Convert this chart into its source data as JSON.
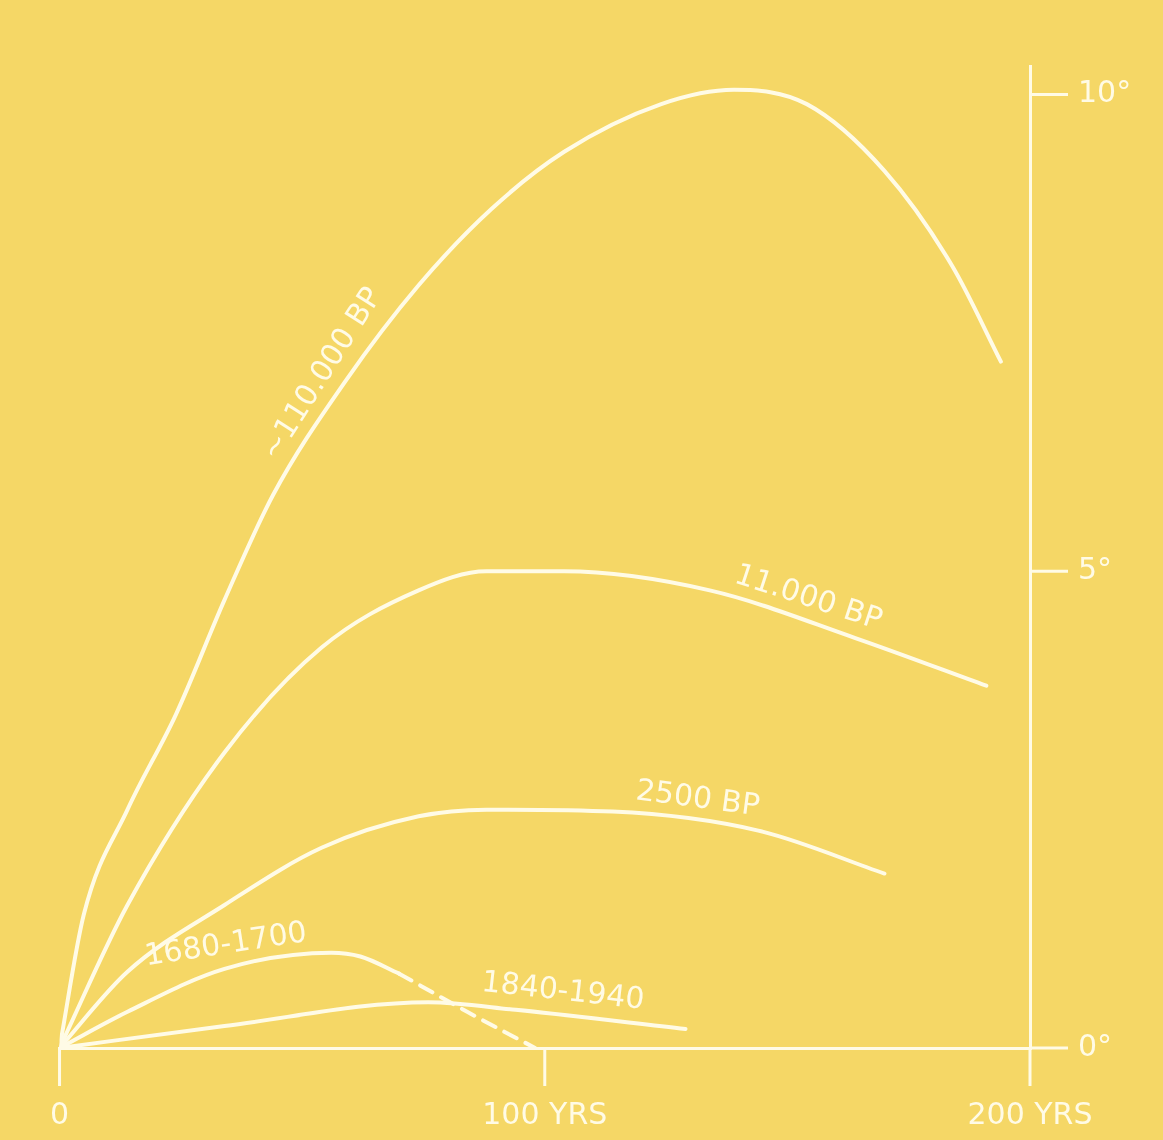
{
  "chart_data": {
    "type": "line",
    "xlim": [
      0,
      200
    ],
    "ylim": [
      0,
      10.3
    ],
    "xticks": [
      0,
      {
        "value": 100,
        "label": "100 YRS"
      },
      {
        "value": 200,
        "label": "200 YRS"
      }
    ],
    "yticks": [
      {
        "value": 0,
        "label": "0°"
      },
      {
        "value": 5,
        "label": "5°"
      },
      {
        "value": 10,
        "label": "10°"
      }
    ],
    "grid": false,
    "legend": false,
    "marker": "none",
    "series": [
      {
        "name": "~110.000 BP",
        "color": "#fffbe6",
        "x": [
          0,
          5,
          14,
          24,
          34,
          44,
          59,
          74,
          89,
          104,
          124,
          139,
          154,
          170,
          184,
          194
        ],
        "values": [
          0,
          1.4,
          2.5,
          3.5,
          4.7,
          5.8,
          7.0,
          8.0,
          8.8,
          9.4,
          9.9,
          10.05,
          9.9,
          9.2,
          8.2,
          7.2
        ]
      },
      {
        "name": "11.000 BP",
        "color": "#fffbe6",
        "x": [
          0,
          14,
          34,
          54,
          74,
          88,
          104,
          134,
          164,
          191
        ],
        "values": [
          0,
          1.5,
          3.1,
          4.2,
          4.8,
          5.0,
          5.0,
          4.8,
          4.3,
          3.8
        ]
      },
      {
        "name": "2500 BP",
        "color": "#fffbe6",
        "x": [
          0,
          14,
          34,
          54,
          74,
          88,
          114,
          144,
          170
        ],
        "values": [
          0,
          0.8,
          1.5,
          2.1,
          2.43,
          2.5,
          2.48,
          2.28,
          1.83
        ]
      },
      {
        "name": "1680-1700",
        "color": "#fffbe6",
        "x": [
          0,
          14,
          34,
          56,
          62,
          70
        ],
        "values": [
          0,
          0.38,
          0.83,
          1.0,
          0.96,
          0.78
        ]
      },
      {
        "color": "#fffbe6",
        "line_style": "dashed",
        "x": [
          70,
          84,
          98
        ],
        "values": [
          0.78,
          0.38,
          0
        ]
      },
      {
        "name": "1840-1940",
        "color": "#fffbe6",
        "x": [
          0,
          34,
          76,
          94,
          129
        ],
        "values": [
          0,
          0.23,
          0.48,
          0.4,
          0.2
        ]
      }
    ]
  }
}
